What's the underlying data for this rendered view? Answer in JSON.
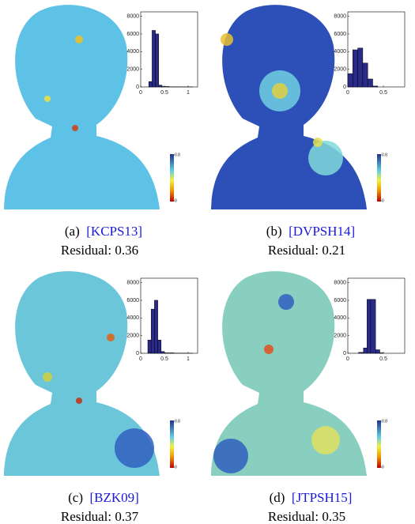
{
  "chart_data": [
    {
      "type": "histogram",
      "bins": [
        0.17,
        0.24,
        0.31,
        0.38,
        0.45,
        0.6,
        0.8,
        1.0,
        1.1
      ],
      "counts": [
        600,
        6400,
        6000,
        200,
        50,
        20,
        10,
        10
      ],
      "color": "#2a2a8a",
      "xlim": [
        0,
        1.2
      ],
      "xticks": [
        0,
        0.5,
        1
      ],
      "ylim": [
        0,
        8500
      ],
      "yticks": [
        0,
        2000,
        4000,
        6000,
        8000
      ],
      "colorbar_ticks": [
        0,
        0.8
      ],
      "caption": {
        "label": "(a)",
        "citation": "[KCPS13]",
        "residual": "Residual: 0.36"
      }
    },
    {
      "type": "histogram",
      "bins": [
        0,
        0.07,
        0.14,
        0.21,
        0.28,
        0.35,
        0.42
      ],
      "counts": [
        1500,
        4200,
        4400,
        2700,
        900,
        100
      ],
      "color": "#2a2a8a",
      "xlim": [
        0,
        0.8
      ],
      "xticks": [
        0,
        0.5
      ],
      "ylim": [
        0,
        8500
      ],
      "yticks": [
        0,
        2000,
        4000,
        6000,
        8000
      ],
      "colorbar_ticks": [
        0,
        0.8
      ],
      "caption": {
        "label": "(b)",
        "citation": "[DVPSH14]",
        "residual": "Residual: 0.21"
      }
    },
    {
      "type": "histogram",
      "bins": [
        0.15,
        0.22,
        0.29,
        0.36,
        0.43,
        0.5,
        0.7,
        1.0,
        1.1
      ],
      "counts": [
        1500,
        5000,
        6000,
        1500,
        200,
        50,
        20,
        10
      ],
      "color": "#2a2a8a",
      "xlim": [
        0,
        1.2
      ],
      "xticks": [
        0,
        0.5,
        1
      ],
      "ylim": [
        0,
        8500
      ],
      "yticks": [
        0,
        2000,
        4000,
        6000,
        8000
      ],
      "colorbar_ticks": [
        0,
        0.8
      ],
      "caption": {
        "label": "(c)",
        "citation": "[BZK09]",
        "residual": "Residual: 0.37"
      }
    },
    {
      "type": "histogram",
      "bins": [
        0.15,
        0.22,
        0.27,
        0.32,
        0.39,
        0.45,
        0.5
      ],
      "counts": [
        100,
        600,
        6100,
        6100,
        400,
        50
      ],
      "color": "#2a2a8a",
      "xlim": [
        0,
        0.8
      ],
      "xticks": [
        0,
        0.5
      ],
      "ylim": [
        0,
        8500
      ],
      "yticks": [
        0,
        2000,
        4000,
        6000,
        8000
      ],
      "colorbar_ticks": [
        0,
        0.8
      ],
      "caption": {
        "label": "(d)",
        "citation": "[JTPSH15]",
        "residual": "Residual: 0.35"
      }
    }
  ]
}
